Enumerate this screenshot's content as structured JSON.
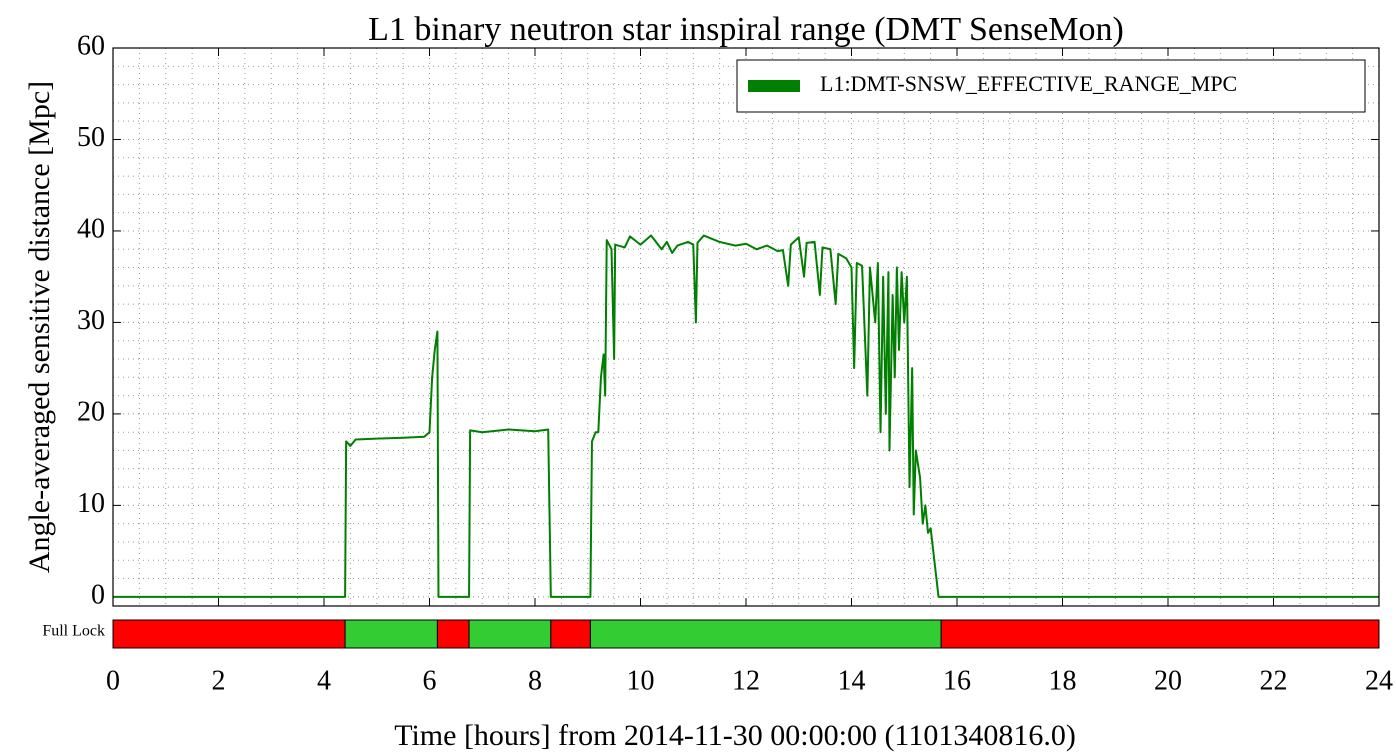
{
  "chart_data": {
    "type": "line",
    "title": "L1 binary neutron star inspiral range (DMT SenseMon)",
    "xlabel": "Time [hours] from 2014-11-30 00:00:00 (1101340816.0)",
    "ylabel": "Angle-averaged sensitive distance [Mpc]",
    "x": [
      0,
      4.4,
      4.42,
      4.5,
      4.6,
      5.0,
      5.5,
      5.9,
      6.0,
      6.05,
      6.1,
      6.15,
      6.17,
      6.75,
      6.77,
      7.0,
      7.5,
      8.0,
      8.25,
      8.3,
      9.05,
      9.08,
      9.15,
      9.2,
      9.25,
      9.3,
      9.33,
      9.36,
      9.45,
      9.5,
      9.52,
      9.7,
      9.8,
      10.0,
      10.2,
      10.4,
      10.5,
      10.6,
      10.7,
      10.9,
      11.0,
      11.05,
      11.08,
      11.2,
      11.5,
      11.8,
      12.0,
      12.2,
      12.4,
      12.6,
      12.7,
      12.8,
      12.85,
      13.0,
      13.1,
      13.15,
      13.3,
      13.4,
      13.45,
      13.6,
      13.7,
      13.75,
      13.9,
      14.0,
      14.05,
      14.1,
      14.2,
      14.3,
      14.35,
      14.45,
      14.5,
      14.55,
      14.6,
      14.65,
      14.7,
      14.72,
      14.78,
      14.82,
      14.86,
      14.9,
      14.95,
      15.0,
      15.05,
      15.1,
      15.15,
      15.18,
      15.22,
      15.3,
      15.35,
      15.4,
      15.45,
      15.5,
      15.55,
      15.65,
      24
    ],
    "series": [
      {
        "name": "L1:DMT-SNSW_EFFECTIVE_RANGE_MPC",
        "color": "#007f00",
        "values": [
          0,
          0,
          17,
          16.5,
          17.2,
          17.3,
          17.4,
          17.5,
          18,
          24,
          27,
          29,
          0,
          0,
          18.2,
          18.0,
          18.3,
          18.1,
          18.3,
          0,
          0,
          17,
          18,
          18,
          24,
          26.5,
          22,
          39,
          38,
          26,
          38.5,
          38.2,
          39.4,
          38.5,
          39.5,
          38.0,
          38.8,
          37.6,
          38.4,
          38.8,
          38.5,
          30,
          38.7,
          39.5,
          38.8,
          38.4,
          38.6,
          38.0,
          38.4,
          37.8,
          37.9,
          34,
          38.5,
          39.3,
          35,
          38.7,
          38.8,
          33,
          38.2,
          38.0,
          32,
          37.5,
          37.0,
          36,
          25,
          36.5,
          36.2,
          22,
          36,
          30,
          36.5,
          18,
          35,
          20,
          35.5,
          16,
          33,
          24,
          36,
          27,
          35.5,
          30,
          35,
          12,
          25,
          9,
          16,
          13,
          8,
          10,
          7,
          7.5,
          5,
          0,
          0
        ]
      }
    ],
    "xlim": [
      0,
      24
    ],
    "ylim": [
      -1,
      60
    ],
    "xticks": [
      0,
      2,
      4,
      6,
      8,
      10,
      12,
      14,
      16,
      18,
      20,
      22,
      24
    ],
    "yticks": [
      0,
      10,
      20,
      30,
      40,
      50,
      60
    ],
    "grid": true,
    "minor_grid": {
      "x": 0.5,
      "y": 2
    },
    "legend": "upper right",
    "state": {
      "label": "Full Lock",
      "on_color": "#33cc33",
      "off_color": "#ff0000",
      "segments": [
        {
          "start": 0,
          "end": 4.4,
          "on": false
        },
        {
          "start": 4.4,
          "end": 6.15,
          "on": true
        },
        {
          "start": 6.15,
          "end": 6.75,
          "on": false
        },
        {
          "start": 6.75,
          "end": 8.3,
          "on": true
        },
        {
          "start": 8.3,
          "end": 9.05,
          "on": false
        },
        {
          "start": 9.05,
          "end": 15.7,
          "on": true
        },
        {
          "start": 15.7,
          "end": 24,
          "on": false
        }
      ]
    }
  }
}
